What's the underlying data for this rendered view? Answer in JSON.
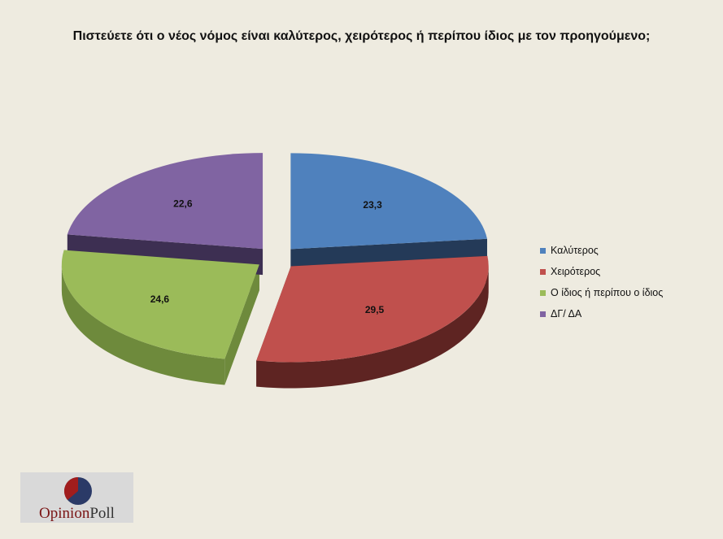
{
  "chart_data": {
    "type": "pie",
    "title": "Πιστεύετε ότι ο νέος νόμος είναι καλύτερος, χειρότερος ή περίπου ίδιος με τον προηγούμενο;",
    "categories": [
      "Καλύτερος",
      "Χειρότερος",
      "Ο ίδιος ή περίπου ο ίδιος",
      "ΔΓ/ ΔΑ"
    ],
    "values": [
      23.3,
      29.5,
      24.6,
      22.6
    ],
    "value_labels": [
      "23,3",
      "29,5",
      "24,6",
      "22,6"
    ],
    "colors": [
      "#4f81bd",
      "#c0504d",
      "#9bbb59",
      "#8064a2"
    ],
    "side_colors": [
      "#243a58",
      "#5e2422",
      "#6e8a3c",
      "#3d2f52"
    ],
    "legend_position": "right",
    "exploded": true,
    "three_d": true
  },
  "logo": {
    "text": "OpinionPoll"
  }
}
